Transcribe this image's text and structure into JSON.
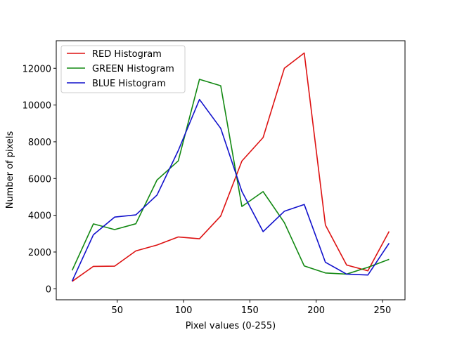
{
  "chart_data": {
    "type": "line",
    "title": "",
    "xlabel": "Pixel values (0-255)",
    "ylabel": "Number of pixels",
    "xlim": [
      4,
      267
    ],
    "ylim": [
      -600,
      13500
    ],
    "xticks": [
      50,
      100,
      150,
      200,
      250
    ],
    "yticks": [
      0,
      2000,
      4000,
      6000,
      8000,
      10000,
      12000
    ],
    "grid": false,
    "legend_position": "top-left",
    "x": [
      16,
      32,
      48,
      64,
      80,
      96,
      112,
      128,
      144,
      160,
      176,
      191,
      207,
      223,
      239,
      255
    ],
    "series": [
      {
        "name": "RED Histogram",
        "color": "#dd1111",
        "values": [
          400,
          1220,
          1230,
          2060,
          2380,
          2820,
          2720,
          3960,
          6950,
          8230,
          12000,
          12830,
          3470,
          1290,
          980,
          3120
        ]
      },
      {
        "name": "GREEN Histogram",
        "color": "#118811",
        "values": [
          1000,
          3530,
          3220,
          3540,
          5920,
          6960,
          11400,
          11050,
          4480,
          5290,
          3600,
          1240,
          860,
          800,
          1170,
          1600
        ]
      },
      {
        "name": "BLUE Histogram",
        "color": "#1111cc",
        "values": [
          420,
          2940,
          3900,
          4020,
          5100,
          7520,
          10300,
          8730,
          5300,
          3110,
          4220,
          4590,
          1440,
          800,
          750,
          2480
        ]
      }
    ]
  }
}
